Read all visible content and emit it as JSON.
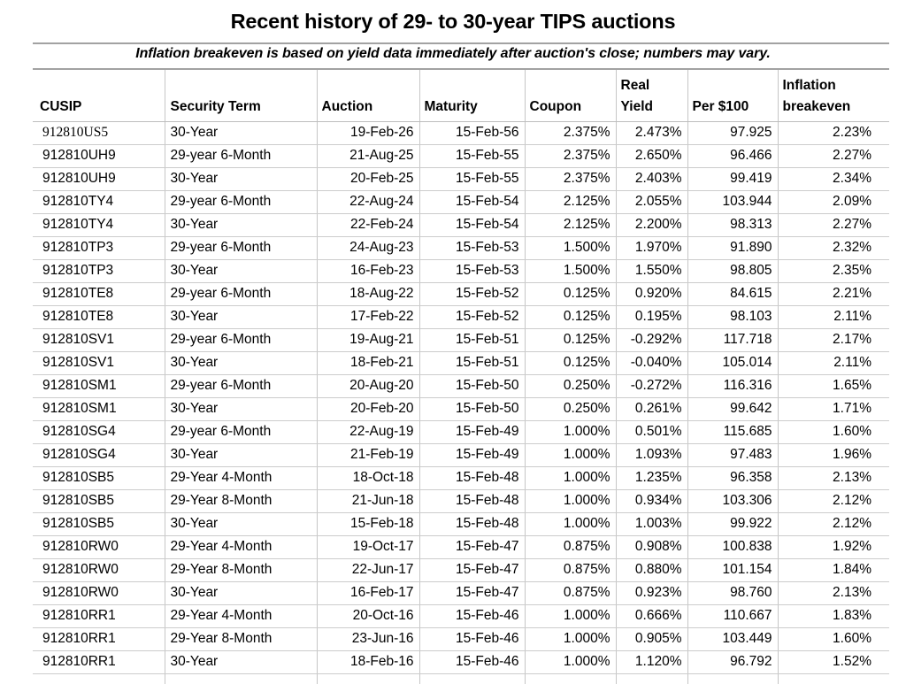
{
  "title": "Recent history of 29- to 30-year TIPS auctions",
  "subtitle": "Inflation breakeven is based on yield data immediately after auction's close; numbers may vary.",
  "table": {
    "header_lines": [
      [
        "CUSIP"
      ],
      [
        "Security Term"
      ],
      [
        "Auction"
      ],
      [
        "Maturity"
      ],
      [
        "Coupon"
      ],
      [
        "Real",
        "Yield"
      ],
      [
        "Per $100"
      ],
      [
        "Inflation",
        "breakeven"
      ]
    ],
    "field_names": [
      "cusip",
      "security-term",
      "auction-date",
      "maturity-date",
      "coupon",
      "real-yield",
      "price-per-100",
      "inflation-breakeven"
    ],
    "first_row_cusip_serif": true
  },
  "chart_data": {
    "type": "table",
    "title": "Recent history of 29- to 30-year TIPS auctions",
    "subtitle": "Inflation breakeven is based on yield data immediately after auction's close; numbers may vary.",
    "columns": [
      "CUSIP",
      "Security Term",
      "Auction",
      "Maturity",
      "Coupon",
      "Real Yield",
      "Per $100",
      "Inflation breakeven"
    ],
    "rows": [
      [
        "912810US5",
        "30-Year",
        "19-Feb-26",
        "15-Feb-56",
        "2.375%",
        "2.473%",
        "97.925",
        "2.23%"
      ],
      [
        "912810UH9",
        "29-year 6-Month",
        "21-Aug-25",
        "15-Feb-55",
        "2.375%",
        "2.650%",
        "96.466",
        "2.27%"
      ],
      [
        "912810UH9",
        "30-Year",
        "20-Feb-25",
        "15-Feb-55",
        "2.375%",
        "2.403%",
        "99.419",
        "2.34%"
      ],
      [
        "912810TY4",
        "29-year 6-Month",
        "22-Aug-24",
        "15-Feb-54",
        "2.125%",
        "2.055%",
        "103.944",
        "2.09%"
      ],
      [
        "912810TY4",
        "30-Year",
        "22-Feb-24",
        "15-Feb-54",
        "2.125%",
        "2.200%",
        "98.313",
        "2.27%"
      ],
      [
        "912810TP3",
        "29-year 6-Month",
        "24-Aug-23",
        "15-Feb-53",
        "1.500%",
        "1.970%",
        "91.890",
        "2.32%"
      ],
      [
        "912810TP3",
        "30-Year",
        "16-Feb-23",
        "15-Feb-53",
        "1.500%",
        "1.550%",
        "98.805",
        "2.35%"
      ],
      [
        "912810TE8",
        "29-year 6-Month",
        "18-Aug-22",
        "15-Feb-52",
        "0.125%",
        "0.920%",
        "84.615",
        "2.21%"
      ],
      [
        "912810TE8",
        "30-Year",
        "17-Feb-22",
        "15-Feb-52",
        "0.125%",
        "0.195%",
        "98.103",
        "2.11%"
      ],
      [
        "912810SV1",
        "29-year 6-Month",
        "19-Aug-21",
        "15-Feb-51",
        "0.125%",
        "-0.292%",
        "117.718",
        "2.17%"
      ],
      [
        "912810SV1",
        "30-Year",
        "18-Feb-21",
        "15-Feb-51",
        "0.125%",
        "-0.040%",
        "105.014",
        "2.11%"
      ],
      [
        "912810SM1",
        "29-year 6-Month",
        "20-Aug-20",
        "15-Feb-50",
        "0.250%",
        "-0.272%",
        "116.316",
        "1.65%"
      ],
      [
        "912810SM1",
        "30-Year",
        "20-Feb-20",
        "15-Feb-50",
        "0.250%",
        "0.261%",
        "99.642",
        "1.71%"
      ],
      [
        "912810SG4",
        "29-year 6-Month",
        "22-Aug-19",
        "15-Feb-49",
        "1.000%",
        "0.501%",
        "115.685",
        "1.60%"
      ],
      [
        "912810SG4",
        "30-Year",
        "21-Feb-19",
        "15-Feb-49",
        "1.000%",
        "1.093%",
        "97.483",
        "1.96%"
      ],
      [
        "912810SB5",
        "29-Year 4-Month",
        "18-Oct-18",
        "15-Feb-48",
        "1.000%",
        "1.235%",
        "96.358",
        "2.13%"
      ],
      [
        "912810SB5",
        "29-Year 8-Month",
        "21-Jun-18",
        "15-Feb-48",
        "1.000%",
        "0.934%",
        "103.306",
        "2.12%"
      ],
      [
        "912810SB5",
        "30-Year",
        "15-Feb-18",
        "15-Feb-48",
        "1.000%",
        "1.003%",
        "99.922",
        "2.12%"
      ],
      [
        "912810RW0",
        "29-Year 4-Month",
        "19-Oct-17",
        "15-Feb-47",
        "0.875%",
        "0.908%",
        "100.838",
        "1.92%"
      ],
      [
        "912810RW0",
        "29-Year 8-Month",
        "22-Jun-17",
        "15-Feb-47",
        "0.875%",
        "0.880%",
        "101.154",
        "1.84%"
      ],
      [
        "912810RW0",
        "30-Year",
        "16-Feb-17",
        "15-Feb-47",
        "0.875%",
        "0.923%",
        "98.760",
        "2.13%"
      ],
      [
        "912810RR1",
        "29-Year 4-Month",
        "20-Oct-16",
        "15-Feb-46",
        "1.000%",
        "0.666%",
        "110.667",
        "1.83%"
      ],
      [
        "912810RR1",
        "29-Year 8-Month",
        "23-Jun-16",
        "15-Feb-46",
        "1.000%",
        "0.905%",
        "103.449",
        "1.60%"
      ],
      [
        "912810RR1",
        "30-Year",
        "18-Feb-16",
        "15-Feb-46",
        "1.000%",
        "1.120%",
        "96.792",
        "1.52%"
      ]
    ]
  },
  "colors": {
    "background": "#ffffff",
    "text": "#000000",
    "grid_line": "#c6c6c6",
    "rule_line": "#a2a2a2"
  }
}
